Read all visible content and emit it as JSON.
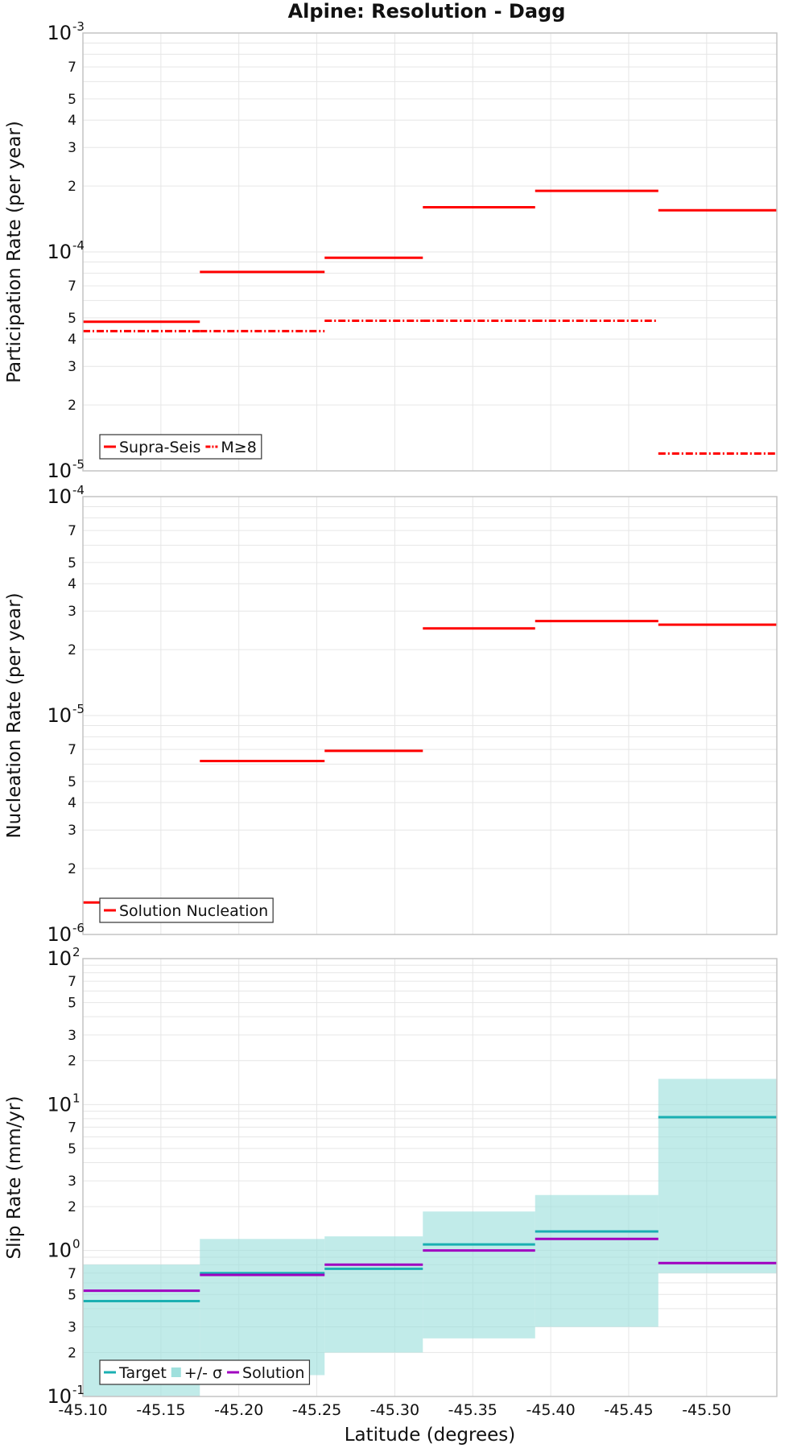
{
  "title": "Alpine: Resolution - Dagg",
  "colors": {
    "red": "#ff0000",
    "target": "#1aafb2",
    "sigma_fill": "#9fe0dd",
    "solution": "#a000c0",
    "grid": "#e6e6e6",
    "frame": "#c4c4c4"
  },
  "chart_data": [
    {
      "type": "line",
      "id": "participation",
      "ylabel": "Participation Rate (per year)",
      "yscale": "log",
      "ylim": [
        1e-05,
        0.001
      ],
      "xlim": [
        -45.1,
        -45.545
      ],
      "x_edges": [
        -45.1,
        -45.175,
        -45.255,
        -45.318,
        -45.39,
        -45.469,
        -45.545
      ],
      "y_major_ticks": [
        {
          "base": "10",
          "exp": "-5"
        },
        {
          "base": "10",
          "exp": "-4"
        },
        {
          "base": "10",
          "exp": "-3"
        }
      ],
      "y_minor_labels": [
        "2",
        "3",
        "4",
        "5",
        "7"
      ],
      "series": [
        {
          "name": "Supra-Seis",
          "style": "solid",
          "values": [
            4.8e-05,
            8.1e-05,
            9.4e-05,
            0.00016,
            0.00019,
            0.000155
          ]
        },
        {
          "name": "M≥8",
          "style": "dashdot",
          "values": [
            4.35e-05,
            4.35e-05,
            4.85e-05,
            4.85e-05,
            4.85e-05,
            1.2e-05
          ]
        }
      ],
      "legend": "bottom-left"
    },
    {
      "type": "line",
      "id": "nucleation",
      "ylabel": "Nucleation Rate (per year)",
      "yscale": "log",
      "ylim": [
        1e-06,
        0.0001
      ],
      "xlim": [
        -45.1,
        -45.545
      ],
      "x_edges": [
        -45.1,
        -45.175,
        -45.255,
        -45.318,
        -45.39,
        -45.469,
        -45.545
      ],
      "y_major_ticks": [
        {
          "base": "10",
          "exp": "-6"
        },
        {
          "base": "10",
          "exp": "-5"
        },
        {
          "base": "10",
          "exp": "-4"
        }
      ],
      "y_minor_labels": [
        "2",
        "3",
        "4",
        "5",
        "7"
      ],
      "series": [
        {
          "name": "Solution Nucleation",
          "style": "solid",
          "values": [
            1.4e-06,
            6.2e-06,
            6.9e-06,
            2.5e-05,
            2.7e-05,
            2.6e-05
          ]
        }
      ],
      "legend": "bottom-left"
    },
    {
      "type": "area",
      "id": "slip",
      "ylabel": "Slip Rate (mm/yr)",
      "xlabel": "Latitude (degrees)",
      "yscale": "log",
      "ylim": [
        0.1,
        100
      ],
      "xlim": [
        -45.1,
        -45.545
      ],
      "x_edges": [
        -45.1,
        -45.175,
        -45.255,
        -45.318,
        -45.39,
        -45.469,
        -45.545
      ],
      "x_ticks": [
        -45.1,
        -45.15,
        -45.2,
        -45.25,
        -45.3,
        -45.35,
        -45.4,
        -45.45,
        -45.5
      ],
      "x_tick_labels": [
        "-45.10",
        "-45.15",
        "-45.20",
        "-45.25",
        "-45.30",
        "-45.35",
        "-45.40",
        "-45.45",
        "-45.50"
      ],
      "y_major_ticks": [
        {
          "base": "10",
          "exp": "-1"
        },
        {
          "base": "10",
          "exp": "0"
        },
        {
          "base": "10",
          "exp": "1"
        },
        {
          "base": "10",
          "exp": "2"
        }
      ],
      "y_minor_labels": [
        "2",
        "3",
        "5",
        "7"
      ],
      "band": {
        "name": "+/- σ",
        "low": [
          0.1,
          0.14,
          0.2,
          0.25,
          0.3,
          0.7
        ],
        "high": [
          0.8,
          1.2,
          1.25,
          1.85,
          2.4,
          15.0
        ]
      },
      "series": [
        {
          "name": "Target",
          "values": [
            0.45,
            0.7,
            0.75,
            1.1,
            1.35,
            8.2
          ]
        },
        {
          "name": "Solution",
          "values": [
            0.53,
            0.68,
            0.8,
            1.0,
            1.2,
            0.82
          ]
        }
      ],
      "legend": "bottom-left"
    }
  ]
}
